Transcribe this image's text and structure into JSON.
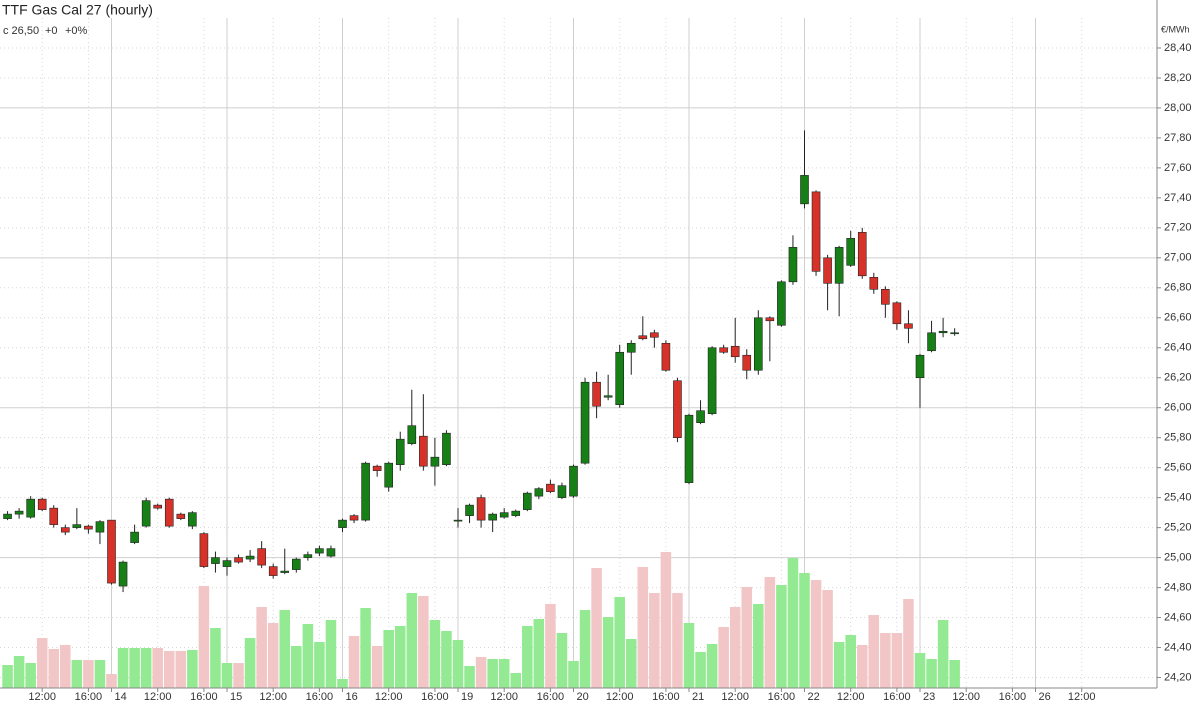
{
  "chart_data": {
    "type": "candlestick",
    "title": "TTF Gas Cal 27 (hourly)",
    "info": [
      "c 26,50",
      "+0",
      "+0%"
    ],
    "y_axis_label": "€/MWh",
    "categories": [
      null,
      null,
      null,
      null,
      "12:00",
      null,
      null,
      null,
      "16:00",
      null,
      "14",
      null,
      null,
      null,
      "12:00",
      null,
      null,
      null,
      "16:00",
      null,
      "15",
      null,
      null,
      null,
      "12:00",
      null,
      null,
      null,
      "16:00",
      null,
      "16",
      null,
      null,
      null,
      "12:00",
      null,
      null,
      null,
      "16:00",
      null,
      "19",
      null,
      null,
      null,
      "12:00",
      null,
      null,
      null,
      "16:00",
      null,
      "20",
      null,
      null,
      null,
      "12:00",
      null,
      null,
      null,
      "16:00",
      null,
      "21",
      null,
      null,
      null,
      "12:00",
      null,
      null,
      null,
      "16:00",
      null,
      "22",
      null,
      null,
      null,
      "12:00",
      null,
      null,
      null,
      "16:00",
      null,
      "23",
      null,
      null,
      null,
      "12:00",
      null,
      null,
      null,
      "16:00",
      null,
      "26",
      null,
      null,
      null,
      "12:00",
      null,
      null,
      null,
      null,
      null
    ],
    "open": [
      null,
      25.26,
      25.29,
      25.27,
      25.39,
      25.33,
      25.2,
      25.2,
      25.21,
      25.17,
      25.25,
      24.81,
      25.1,
      25.21,
      25.35,
      25.39,
      25.29,
      25.21,
      25.16,
      24.96,
      24.94,
      25.0,
      24.99,
      25.06,
      24.94,
      24.9,
      24.92,
      25.0,
      25.03,
      25.01,
      25.2,
      25.28,
      25.25,
      25.61,
      25.47,
      25.62,
      25.76,
      25.81,
      25.61,
      25.62,
      25.25,
      25.28,
      25.4,
      25.25,
      25.27,
      25.28,
      25.32,
      25.41,
      25.49,
      25.4,
      25.41,
      25.63,
      26.17,
      26.07,
      26.02,
      26.37,
      26.48,
      26.5,
      26.43,
      26.18,
      25.5,
      25.9,
      25.96,
      26.4,
      26.41,
      26.35,
      26.25,
      26.6,
      26.55,
      26.84,
      27.36,
      27.44,
      27.0,
      26.83,
      26.95,
      27.17,
      26.87,
      26.79,
      26.7,
      26.56,
      26.2,
      26.38,
      26.5,
      26.5,
      null,
      null,
      null,
      null,
      null,
      null,
      null,
      null,
      null,
      null,
      null,
      null,
      null,
      null,
      null,
      null
    ],
    "high": [
      null,
      25.31,
      25.33,
      25.41,
      25.4,
      25.35,
      25.22,
      25.33,
      25.22,
      25.25,
      25.25,
      24.98,
      25.22,
      25.4,
      25.36,
      25.4,
      25.3,
      25.31,
      25.17,
      25.04,
      25.0,
      25.02,
      25.05,
      25.11,
      24.96,
      25.06,
      25.0,
      25.04,
      25.08,
      25.08,
      25.26,
      25.29,
      25.64,
      25.62,
      25.64,
      25.84,
      26.12,
      26.09,
      25.8,
      25.85,
      25.33,
      25.36,
      25.42,
      25.3,
      25.33,
      25.32,
      25.44,
      25.47,
      25.52,
      25.5,
      25.62,
      26.2,
      26.24,
      26.22,
      26.42,
      26.45,
      26.61,
      26.52,
      26.45,
      26.2,
      25.96,
      26.05,
      26.41,
      26.42,
      26.6,
      26.39,
      26.65,
      26.61,
      26.85,
      27.15,
      27.85,
      27.45,
      27.02,
      27.08,
      27.18,
      27.2,
      26.9,
      26.81,
      26.71,
      26.65,
      26.36,
      26.58,
      26.6,
      26.53,
      null,
      null,
      null,
      null,
      null,
      null,
      null,
      null,
      null,
      null,
      null,
      null,
      null,
      null,
      null,
      null
    ],
    "low": [
      null,
      25.25,
      25.26,
      25.26,
      25.31,
      25.2,
      25.15,
      25.19,
      25.16,
      25.09,
      24.82,
      24.77,
      25.09,
      25.2,
      25.32,
      25.2,
      25.25,
      25.19,
      24.93,
      24.9,
      24.88,
      24.96,
      24.97,
      24.93,
      24.86,
      24.89,
      24.9,
      24.98,
      25.01,
      25.0,
      25.17,
      25.23,
      25.24,
      25.54,
      25.44,
      25.58,
      25.75,
      25.58,
      25.48,
      25.61,
      25.2,
      25.23,
      25.2,
      25.17,
      25.26,
      25.27,
      25.31,
      25.39,
      25.43,
      25.39,
      25.4,
      25.62,
      25.93,
      26.05,
      26.0,
      26.22,
      26.45,
      26.4,
      26.24,
      25.77,
      25.49,
      25.89,
      25.95,
      26.36,
      26.3,
      26.19,
      26.22,
      26.31,
      26.54,
      26.82,
      27.33,
      26.88,
      26.65,
      26.61,
      26.94,
      26.86,
      26.76,
      26.6,
      26.52,
      26.43,
      26.0,
      26.37,
      26.47,
      26.48,
      null,
      null,
      null,
      null,
      null,
      null,
      null,
      null,
      null,
      null,
      null,
      null,
      null,
      null,
      null,
      null
    ],
    "close": [
      null,
      25.29,
      25.31,
      25.39,
      25.32,
      25.22,
      25.17,
      25.22,
      25.19,
      25.24,
      24.83,
      24.97,
      25.17,
      25.38,
      25.33,
      25.21,
      25.26,
      25.3,
      24.94,
      25.0,
      24.98,
      24.97,
      25.01,
      24.95,
      24.88,
      24.91,
      24.99,
      25.02,
      25.06,
      25.06,
      25.25,
      25.25,
      25.63,
      25.58,
      25.63,
      25.79,
      25.88,
      25.61,
      25.67,
      25.83,
      25.25,
      25.35,
      25.25,
      25.29,
      25.3,
      25.31,
      25.43,
      25.46,
      25.44,
      25.48,
      25.61,
      26.17,
      26.01,
      26.08,
      26.37,
      26.43,
      26.46,
      26.47,
      26.25,
      25.8,
      25.95,
      25.98,
      26.4,
      26.37,
      26.34,
      26.25,
      26.6,
      26.58,
      26.84,
      27.07,
      27.55,
      26.91,
      26.83,
      27.07,
      27.13,
      26.88,
      26.79,
      26.69,
      26.56,
      26.53,
      26.35,
      26.5,
      26.51,
      26.5,
      null,
      null,
      null,
      null,
      null,
      null,
      null,
      null,
      null,
      null,
      null,
      null,
      null,
      null,
      null,
      null
    ],
    "volume": [
      null,
      23,
      32,
      25,
      50,
      39,
      43,
      28,
      28,
      28,
      14,
      40,
      40,
      40,
      40,
      37,
      37,
      38,
      102,
      60,
      25,
      25,
      50,
      81,
      65,
      78,
      42,
      64,
      46,
      68,
      9,
      52,
      80,
      42,
      58,
      62,
      95,
      92,
      68,
      57,
      48,
      22,
      31,
      29,
      29,
      15,
      62,
      69,
      84,
      55,
      27,
      78,
      120,
      71,
      91,
      49,
      121,
      95,
      136,
      95,
      65,
      36,
      44,
      61,
      81,
      101,
      84,
      111,
      103,
      130,
      115,
      108,
      98,
      46,
      53,
      43,
      73,
      55,
      55,
      89,
      35,
      29,
      68,
      28,
      null,
      null,
      null,
      null,
      null,
      null,
      null,
      null,
      null,
      null,
      null,
      null,
      null,
      null,
      null,
      null
    ],
    "volume_lim": [
      0,
      150
    ],
    "up_color": "#168016",
    "down_color": "#d7322a",
    "volume_up_color": "#93ea93",
    "volume_down_color": "#f2c6c6",
    "change_color": "#1a9a1a",
    "ylim": [
      24.13,
      28.6
    ],
    "yticks": [
      {
        "value": 24.2,
        "label": "24,20"
      },
      {
        "value": 24.4,
        "label": "24,40"
      },
      {
        "value": 24.6,
        "label": "24,60"
      },
      {
        "value": 24.8,
        "label": "24,80"
      },
      {
        "value": 25.0,
        "label": "25,00"
      },
      {
        "value": 25.2,
        "label": "25,20"
      },
      {
        "value": 25.4,
        "label": "25,40"
      },
      {
        "value": 25.6,
        "label": "25,60"
      },
      {
        "value": 25.8,
        "label": "25,80"
      },
      {
        "value": 26.0,
        "label": "26,00"
      },
      {
        "value": 26.2,
        "label": "26,20"
      },
      {
        "value": 26.4,
        "label": "26,40"
      },
      {
        "value": 26.6,
        "label": "26,60"
      },
      {
        "value": 26.8,
        "label": "26,80"
      },
      {
        "value": 27.0,
        "label": "27,00"
      },
      {
        "value": 27.2,
        "label": "27,20"
      },
      {
        "value": 27.4,
        "label": "27,40"
      },
      {
        "value": 27.6,
        "label": "27,60"
      },
      {
        "value": 27.8,
        "label": "27,80"
      },
      {
        "value": 28.0,
        "label": "28,00"
      },
      {
        "value": 28.2,
        "label": "28,20"
      },
      {
        "value": 28.4,
        "label": "28,40"
      }
    ],
    "grid": true
  }
}
